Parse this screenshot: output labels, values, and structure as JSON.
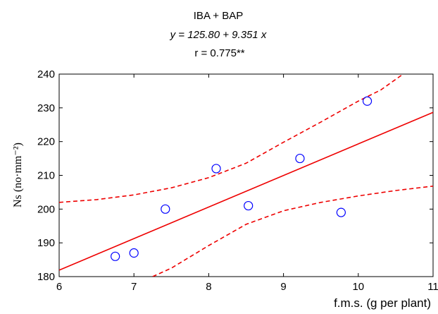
{
  "chart_data": {
    "type": "scatter",
    "title_lines": {
      "line1": "IBA + BAP",
      "line2": "y = 125.80 + 9.351 x",
      "line3": "r = 0.775**"
    },
    "xlabel": "f.m.s. (g per plant)",
    "ylabel": "Ns (no·mm⁻²)",
    "xlim": [
      6,
      11
    ],
    "ylim": [
      180,
      240
    ],
    "x_ticks": [
      6,
      7,
      8,
      9,
      10,
      11
    ],
    "y_ticks": [
      180,
      190,
      200,
      210,
      220,
      230,
      240
    ],
    "x_tick_labels": [
      "6",
      "7",
      "8",
      "9",
      "10",
      "11"
    ],
    "y_tick_labels": [
      "180",
      "190",
      "200",
      "210",
      "220",
      "230",
      "240"
    ],
    "points": [
      {
        "x": 6.75,
        "y": 186
      },
      {
        "x": 7.0,
        "y": 187
      },
      {
        "x": 7.42,
        "y": 200
      },
      {
        "x": 8.1,
        "y": 212
      },
      {
        "x": 8.53,
        "y": 201
      },
      {
        "x": 9.22,
        "y": 215
      },
      {
        "x": 9.77,
        "y": 199
      },
      {
        "x": 10.12,
        "y": 232
      }
    ],
    "regression": {
      "intercept": 125.8,
      "slope": 9.351
    },
    "confidence_band": {
      "upper": [
        {
          "x": 6.0,
          "y": 202.0
        },
        {
          "x": 6.5,
          "y": 202.8
        },
        {
          "x": 7.0,
          "y": 204.2
        },
        {
          "x": 7.5,
          "y": 206.3
        },
        {
          "x": 8.0,
          "y": 209.3
        },
        {
          "x": 8.5,
          "y": 213.6
        },
        {
          "x": 9.0,
          "y": 219.8
        },
        {
          "x": 9.5,
          "y": 225.8
        },
        {
          "x": 10.0,
          "y": 232.0
        },
        {
          "x": 10.3,
          "y": 235.3
        },
        {
          "x": 10.6,
          "y": 240.0
        }
      ],
      "lower": [
        {
          "x": 7.25,
          "y": 180.0
        },
        {
          "x": 7.5,
          "y": 182.5
        },
        {
          "x": 8.0,
          "y": 189.2
        },
        {
          "x": 8.5,
          "y": 195.5
        },
        {
          "x": 9.0,
          "y": 199.5
        },
        {
          "x": 9.5,
          "y": 202.0
        },
        {
          "x": 10.0,
          "y": 203.9
        },
        {
          "x": 10.5,
          "y": 205.5
        },
        {
          "x": 11.0,
          "y": 206.8
        }
      ]
    },
    "grid": false,
    "colors": {
      "points": "#0000ff",
      "regression_line": "#ee0000",
      "confidence_band": "#ee0000",
      "axes": "#000000"
    }
  }
}
